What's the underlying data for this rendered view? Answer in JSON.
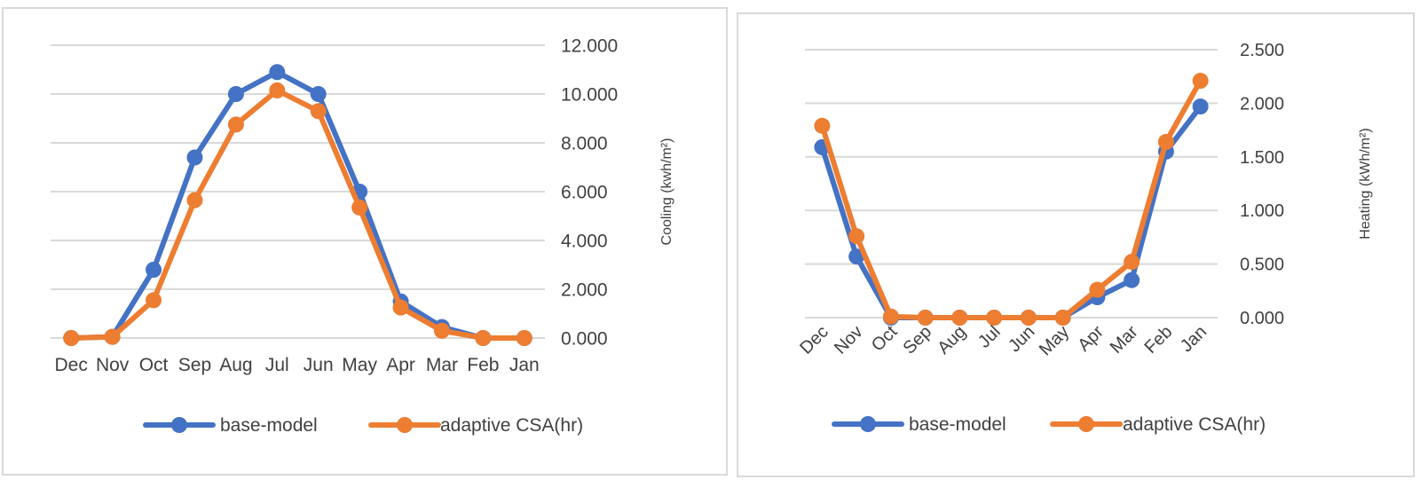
{
  "chart_data": [
    {
      "type": "line",
      "title": "",
      "xlabel": "",
      "ylabel": "Cooling (kwh/m²)",
      "y_axis_position": "right",
      "categories": [
        "Dec",
        "Nov",
        "Oct",
        "Sep",
        "Aug",
        "Jul",
        "Jun",
        "May",
        "Apr",
        "Mar",
        "Feb",
        "Jan"
      ],
      "yticks": [
        "0.000",
        "2.000",
        "4.000",
        "6.000",
        "8.000",
        "10.000",
        "12.000"
      ],
      "ylim": [
        0,
        12
      ],
      "grid": true,
      "legend": "bottom",
      "series": [
        {
          "name": "base-model",
          "color": "#4472C4",
          "values": [
            0.0,
            0.05,
            2.8,
            7.4,
            10.0,
            10.9,
            10.0,
            6.0,
            1.5,
            0.45,
            0.0,
            0.0
          ]
        },
        {
          "name": "adaptive CSA(hr)",
          "color": "#ED7D31",
          "values": [
            0.0,
            0.05,
            1.55,
            5.65,
            8.75,
            10.15,
            9.3,
            5.35,
            1.25,
            0.3,
            0.0,
            0.0
          ]
        }
      ]
    },
    {
      "type": "line",
      "title": "",
      "xlabel": "",
      "ylabel": "Heating (kWh/m²)",
      "y_axis_position": "right",
      "x_tick_rotation": "rotated",
      "categories": [
        "Dec",
        "Nov",
        "Oct",
        "Sep",
        "Aug",
        "Jul",
        "Jun",
        "May",
        "Apr",
        "Mar",
        "Feb",
        "Jan"
      ],
      "yticks": [
        "0.000",
        "0.500",
        "1.000",
        "1.500",
        "2.000",
        "2.500"
      ],
      "ylim": [
        0,
        2.5
      ],
      "grid": true,
      "legend": "bottom",
      "series": [
        {
          "name": "base-model",
          "color": "#4472C4",
          "values": [
            1.59,
            0.57,
            0.0,
            0.0,
            0.0,
            0.0,
            0.0,
            0.0,
            0.19,
            0.35,
            1.55,
            1.97
          ]
        },
        {
          "name": "adaptive CSA(hr)",
          "color": "#ED7D31",
          "values": [
            1.79,
            0.76,
            0.01,
            0.0,
            0.0,
            0.0,
            0.0,
            0.0,
            0.26,
            0.52,
            1.64,
            2.21
          ]
        }
      ]
    }
  ]
}
